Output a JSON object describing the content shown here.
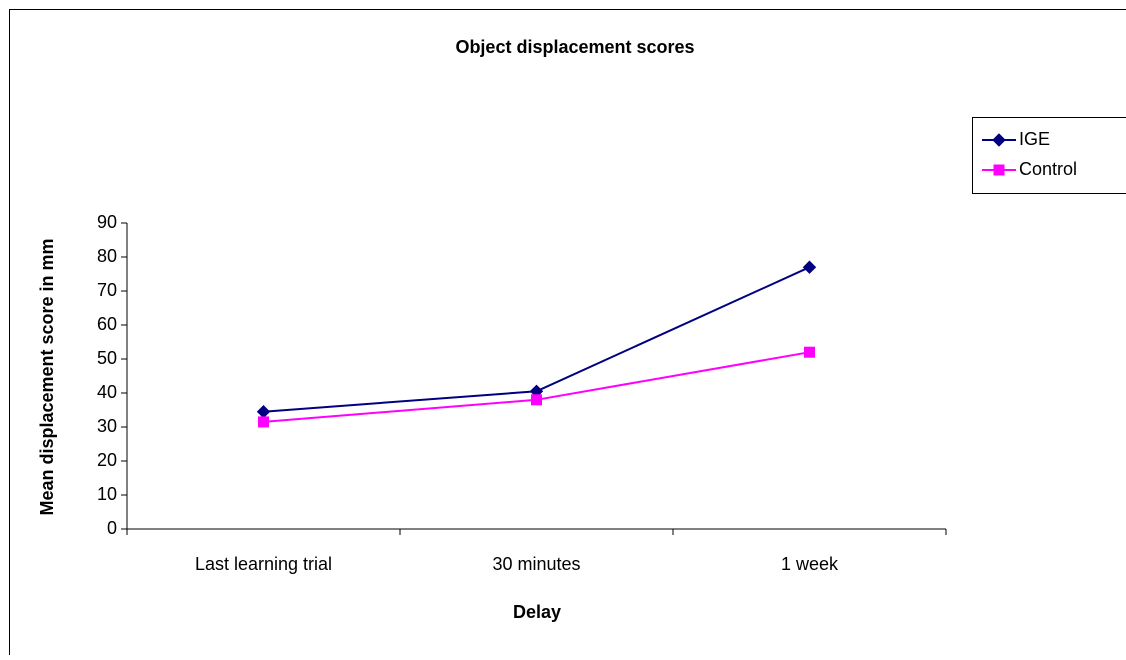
{
  "chart_data": {
    "type": "line",
    "title": "Object displacement scores",
    "x_label": "Delay",
    "y_label": "Mean displacement score in mm",
    "categories": [
      "Last learning trial",
      "30 minutes",
      "1 week"
    ],
    "series": [
      {
        "name": "IGE",
        "color": "#000080",
        "marker": "diamond",
        "values": [
          34.5,
          40.5,
          77
        ]
      },
      {
        "name": "Control",
        "color": "#ff00ff",
        "marker": "square",
        "values": [
          31.5,
          38,
          52
        ]
      }
    ],
    "ylim": [
      0,
      90
    ],
    "yticks": [
      0,
      10,
      20,
      30,
      40,
      50,
      60,
      70,
      80,
      90
    ],
    "grid": false,
    "legend": "right"
  }
}
